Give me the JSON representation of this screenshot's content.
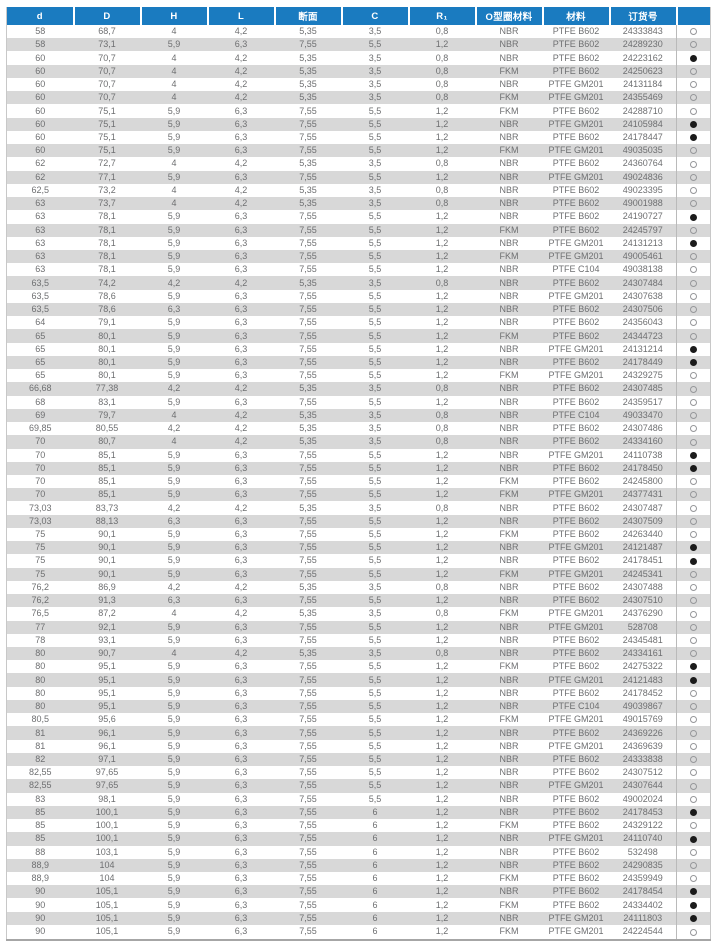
{
  "colors": {
    "header_bg": "#1a7bc0",
    "stripe": "#d8d8d8",
    "body_text": "#6e6f71",
    "dot_filled": "#1b1b1b",
    "dot_outline": "#96979a"
  },
  "table": {
    "columns": [
      "d",
      "D",
      "H",
      "L",
      "断面",
      "C",
      "R₁",
      "O型圈材料",
      "材料",
      "订货号",
      ""
    ],
    "field_names": [
      "d",
      "D",
      "H",
      "L",
      "section",
      "C",
      "R1",
      "oring-material",
      "material",
      "order-number"
    ],
    "dot_glyphs": {
      "hollow": "○",
      "filled": "●"
    },
    "rows": [
      [
        "58",
        "68,7",
        "4",
        "4,2",
        "5,35",
        "3,5",
        "0,8",
        "NBR",
        "PTFE B602",
        "24333843",
        "hollow"
      ],
      [
        "58",
        "73,1",
        "5,9",
        "6,3",
        "7,55",
        "5,5",
        "1,2",
        "NBR",
        "PTFE B602",
        "24289230",
        "hollow"
      ],
      [
        "60",
        "70,7",
        "4",
        "4,2",
        "5,35",
        "3,5",
        "0,8",
        "NBR",
        "PTFE B602",
        "24223162",
        "filled"
      ],
      [
        "60",
        "70,7",
        "4",
        "4,2",
        "5,35",
        "3,5",
        "0,8",
        "FKM",
        "PTFE B602",
        "24250623",
        "hollow"
      ],
      [
        "60",
        "70,7",
        "4",
        "4,2",
        "5,35",
        "3,5",
        "0,8",
        "NBR",
        "PTFE GM201",
        "24131184",
        "hollow"
      ],
      [
        "60",
        "70,7",
        "4",
        "4,2",
        "5,35",
        "3,5",
        "0,8",
        "FKM",
        "PTFE GM201",
        "24355469",
        "hollow"
      ],
      [
        "60",
        "75,1",
        "5,9",
        "6,3",
        "7,55",
        "5,5",
        "1,2",
        "FKM",
        "PTFE B602",
        "24288710",
        "hollow"
      ],
      [
        "60",
        "75,1",
        "5,9",
        "6,3",
        "7,55",
        "5,5",
        "1,2",
        "NBR",
        "PTFE GM201",
        "24105984",
        "filled"
      ],
      [
        "60",
        "75,1",
        "5,9",
        "6,3",
        "7,55",
        "5,5",
        "1,2",
        "NBR",
        "PTFE B602",
        "24178447",
        "filled"
      ],
      [
        "60",
        "75,1",
        "5,9",
        "6,3",
        "7,55",
        "5,5",
        "1,2",
        "FKM",
        "PTFE GM201",
        "49035035",
        "hollow"
      ],
      [
        "62",
        "72,7",
        "4",
        "4,2",
        "5,35",
        "3,5",
        "0,8",
        "NBR",
        "PTFE B602",
        "24360764",
        "hollow"
      ],
      [
        "62",
        "77,1",
        "5,9",
        "6,3",
        "7,55",
        "5,5",
        "1,2",
        "NBR",
        "PTFE GM201",
        "49024836",
        "hollow"
      ],
      [
        "62,5",
        "73,2",
        "4",
        "4,2",
        "5,35",
        "3,5",
        "0,8",
        "NBR",
        "PTFE B602",
        "49023395",
        "hollow"
      ],
      [
        "63",
        "73,7",
        "4",
        "4,2",
        "5,35",
        "3,5",
        "0,8",
        "NBR",
        "PTFE B602",
        "49001988",
        "hollow"
      ],
      [
        "63",
        "78,1",
        "5,9",
        "6,3",
        "7,55",
        "5,5",
        "1,2",
        "NBR",
        "PTFE B602",
        "24190727",
        "filled"
      ],
      [
        "63",
        "78,1",
        "5,9",
        "6,3",
        "7,55",
        "5,5",
        "1,2",
        "FKM",
        "PTFE B602",
        "24245797",
        "hollow"
      ],
      [
        "63",
        "78,1",
        "5,9",
        "6,3",
        "7,55",
        "5,5",
        "1,2",
        "NBR",
        "PTFE GM201",
        "24131213",
        "filled"
      ],
      [
        "63",
        "78,1",
        "5,9",
        "6,3",
        "7,55",
        "5,5",
        "1,2",
        "FKM",
        "PTFE GM201",
        "49005461",
        "hollow"
      ],
      [
        "63",
        "78,1",
        "5,9",
        "6,3",
        "7,55",
        "5,5",
        "1,2",
        "NBR",
        "PTFE C104",
        "49038138",
        "hollow"
      ],
      [
        "63,5",
        "74,2",
        "4,2",
        "4,2",
        "5,35",
        "3,5",
        "0,8",
        "NBR",
        "PTFE B602",
        "24307484",
        "hollow"
      ],
      [
        "63,5",
        "78,6",
        "5,9",
        "6,3",
        "7,55",
        "5,5",
        "1,2",
        "NBR",
        "PTFE GM201",
        "24307638",
        "hollow"
      ],
      [
        "63,5",
        "78,6",
        "6,3",
        "6,3",
        "7,55",
        "5,5",
        "1,2",
        "NBR",
        "PTFE B602",
        "24307506",
        "hollow"
      ],
      [
        "64",
        "79,1",
        "5,9",
        "6,3",
        "7,55",
        "5,5",
        "1,2",
        "NBR",
        "PTFE B602",
        "24356043",
        "hollow"
      ],
      [
        "65",
        "80,1",
        "5,9",
        "6,3",
        "7,55",
        "5,5",
        "1,2",
        "FKM",
        "PTFE B602",
        "24344723",
        "hollow"
      ],
      [
        "65",
        "80,1",
        "5,9",
        "6,3",
        "7,55",
        "5,5",
        "1,2",
        "NBR",
        "PTFE GM201",
        "24131214",
        "filled"
      ],
      [
        "65",
        "80,1",
        "5,9",
        "6,3",
        "7,55",
        "5,5",
        "1,2",
        "NBR",
        "PTFE B602",
        "24178449",
        "filled"
      ],
      [
        "65",
        "80,1",
        "5,9",
        "6,3",
        "7,55",
        "5,5",
        "1,2",
        "FKM",
        "PTFE GM201",
        "24329275",
        "hollow"
      ],
      [
        "66,68",
        "77,38",
        "4,2",
        "4,2",
        "5,35",
        "3,5",
        "0,8",
        "NBR",
        "PTFE B602",
        "24307485",
        "hollow"
      ],
      [
        "68",
        "83,1",
        "5,9",
        "6,3",
        "7,55",
        "5,5",
        "1,2",
        "NBR",
        "PTFE B602",
        "24359517",
        "hollow"
      ],
      [
        "69",
        "79,7",
        "4",
        "4,2",
        "5,35",
        "3,5",
        "0,8",
        "NBR",
        "PTFE C104",
        "49033470",
        "hollow"
      ],
      [
        "69,85",
        "80,55",
        "4,2",
        "4,2",
        "5,35",
        "3,5",
        "0,8",
        "NBR",
        "PTFE B602",
        "24307486",
        "hollow"
      ],
      [
        "70",
        "80,7",
        "4",
        "4,2",
        "5,35",
        "3,5",
        "0,8",
        "NBR",
        "PTFE B602",
        "24334160",
        "hollow"
      ],
      [
        "70",
        "85,1",
        "5,9",
        "6,3",
        "7,55",
        "5,5",
        "1,2",
        "NBR",
        "PTFE GM201",
        "24110738",
        "filled"
      ],
      [
        "70",
        "85,1",
        "5,9",
        "6,3",
        "7,55",
        "5,5",
        "1,2",
        "NBR",
        "PTFE B602",
        "24178450",
        "filled"
      ],
      [
        "70",
        "85,1",
        "5,9",
        "6,3",
        "7,55",
        "5,5",
        "1,2",
        "FKM",
        "PTFE B602",
        "24245800",
        "hollow"
      ],
      [
        "70",
        "85,1",
        "5,9",
        "6,3",
        "7,55",
        "5,5",
        "1,2",
        "FKM",
        "PTFE GM201",
        "24377431",
        "hollow"
      ],
      [
        "73,03",
        "83,73",
        "4,2",
        "4,2",
        "5,35",
        "3,5",
        "0,8",
        "NBR",
        "PTFE B602",
        "24307487",
        "hollow"
      ],
      [
        "73,03",
        "88,13",
        "6,3",
        "6,3",
        "7,55",
        "5,5",
        "1,2",
        "NBR",
        "PTFE B602",
        "24307509",
        "hollow"
      ],
      [
        "75",
        "90,1",
        "5,9",
        "6,3",
        "7,55",
        "5,5",
        "1,2",
        "FKM",
        "PTFE B602",
        "24263440",
        "hollow"
      ],
      [
        "75",
        "90,1",
        "5,9",
        "6,3",
        "7,55",
        "5,5",
        "1,2",
        "NBR",
        "PTFE GM201",
        "24121487",
        "filled"
      ],
      [
        "75",
        "90,1",
        "5,9",
        "6,3",
        "7,55",
        "5,5",
        "1,2",
        "NBR",
        "PTFE B602",
        "24178451",
        "filled"
      ],
      [
        "75",
        "90,1",
        "5,9",
        "6,3",
        "7,55",
        "5,5",
        "1,2",
        "FKM",
        "PTFE GM201",
        "24245341",
        "hollow"
      ],
      [
        "76,2",
        "86,9",
        "4,2",
        "4,2",
        "5,35",
        "3,5",
        "0,8",
        "NBR",
        "PTFE B602",
        "24307488",
        "hollow"
      ],
      [
        "76,2",
        "91,3",
        "6,3",
        "6,3",
        "7,55",
        "5,5",
        "1,2",
        "NBR",
        "PTFE B602",
        "24307510",
        "hollow"
      ],
      [
        "76,5",
        "87,2",
        "4",
        "4,2",
        "5,35",
        "3,5",
        "0,8",
        "FKM",
        "PTFE GM201",
        "24376290",
        "hollow"
      ],
      [
        "77",
        "92,1",
        "5,9",
        "6,3",
        "7,55",
        "5,5",
        "1,2",
        "NBR",
        "PTFE GM201",
        "528708",
        "hollow"
      ],
      [
        "78",
        "93,1",
        "5,9",
        "6,3",
        "7,55",
        "5,5",
        "1,2",
        "NBR",
        "PTFE B602",
        "24345481",
        "hollow"
      ],
      [
        "80",
        "90,7",
        "4",
        "4,2",
        "5,35",
        "3,5",
        "0,8",
        "NBR",
        "PTFE B602",
        "24334161",
        "hollow"
      ],
      [
        "80",
        "95,1",
        "5,9",
        "6,3",
        "7,55",
        "5,5",
        "1,2",
        "FKM",
        "PTFE B602",
        "24275322",
        "filled"
      ],
      [
        "80",
        "95,1",
        "5,9",
        "6,3",
        "7,55",
        "5,5",
        "1,2",
        "NBR",
        "PTFE GM201",
        "24121483",
        "filled"
      ],
      [
        "80",
        "95,1",
        "5,9",
        "6,3",
        "7,55",
        "5,5",
        "1,2",
        "NBR",
        "PTFE B602",
        "24178452",
        "hollow"
      ],
      [
        "80",
        "95,1",
        "5,9",
        "6,3",
        "7,55",
        "5,5",
        "1,2",
        "NBR",
        "PTFE C104",
        "49039867",
        "hollow"
      ],
      [
        "80,5",
        "95,6",
        "5,9",
        "6,3",
        "7,55",
        "5,5",
        "1,2",
        "FKM",
        "PTFE GM201",
        "49015769",
        "hollow"
      ],
      [
        "81",
        "96,1",
        "5,9",
        "6,3",
        "7,55",
        "5,5",
        "1,2",
        "NBR",
        "PTFE B602",
        "24369226",
        "hollow"
      ],
      [
        "81",
        "96,1",
        "5,9",
        "6,3",
        "7,55",
        "5,5",
        "1,2",
        "NBR",
        "PTFE GM201",
        "24369639",
        "hollow"
      ],
      [
        "82",
        "97,1",
        "5,9",
        "6,3",
        "7,55",
        "5,5",
        "1,2",
        "NBR",
        "PTFE B602",
        "24333838",
        "hollow"
      ],
      [
        "82,55",
        "97,65",
        "5,9",
        "6,3",
        "7,55",
        "5,5",
        "1,2",
        "NBR",
        "PTFE B602",
        "24307512",
        "hollow"
      ],
      [
        "82,55",
        "97,65",
        "5,9",
        "6,3",
        "7,55",
        "5,5",
        "1,2",
        "NBR",
        "PTFE GM201",
        "24307644",
        "hollow"
      ],
      [
        "83",
        "98,1",
        "5,9",
        "6,3",
        "7,55",
        "5,5",
        "1,2",
        "NBR",
        "PTFE B602",
        "49002024",
        "hollow"
      ],
      [
        "85",
        "100,1",
        "5,9",
        "6,3",
        "7,55",
        "6",
        "1,2",
        "NBR",
        "PTFE B602",
        "24178453",
        "filled"
      ],
      [
        "85",
        "100,1",
        "5,9",
        "6,3",
        "7,55",
        "6",
        "1,2",
        "FKM",
        "PTFE B602",
        "24329122",
        "hollow"
      ],
      [
        "85",
        "100,1",
        "5,9",
        "6,3",
        "7,55",
        "6",
        "1,2",
        "NBR",
        "PTFE GM201",
        "24110740",
        "filled"
      ],
      [
        "88",
        "103,1",
        "5,9",
        "6,3",
        "7,55",
        "6",
        "1,2",
        "NBR",
        "PTFE B602",
        "532498",
        "hollow"
      ],
      [
        "88,9",
        "104",
        "5,9",
        "6,3",
        "7,55",
        "6",
        "1,2",
        "NBR",
        "PTFE B602",
        "24290835",
        "hollow"
      ],
      [
        "88,9",
        "104",
        "5,9",
        "6,3",
        "7,55",
        "6",
        "1,2",
        "FKM",
        "PTFE B602",
        "24359949",
        "hollow"
      ],
      [
        "90",
        "105,1",
        "5,9",
        "6,3",
        "7,55",
        "6",
        "1,2",
        "NBR",
        "PTFE B602",
        "24178454",
        "filled"
      ],
      [
        "90",
        "105,1",
        "5,9",
        "6,3",
        "7,55",
        "6",
        "1,2",
        "FKM",
        "PTFE B602",
        "24334402",
        "filled"
      ],
      [
        "90",
        "105,1",
        "5,9",
        "6,3",
        "7,55",
        "6",
        "1,2",
        "NBR",
        "PTFE GM201",
        "24111803",
        "filled"
      ],
      [
        "90",
        "105,1",
        "5,9",
        "6,3",
        "7,55",
        "6",
        "1,2",
        "FKM",
        "PTFE GM201",
        "24224544",
        "hollow"
      ]
    ]
  }
}
